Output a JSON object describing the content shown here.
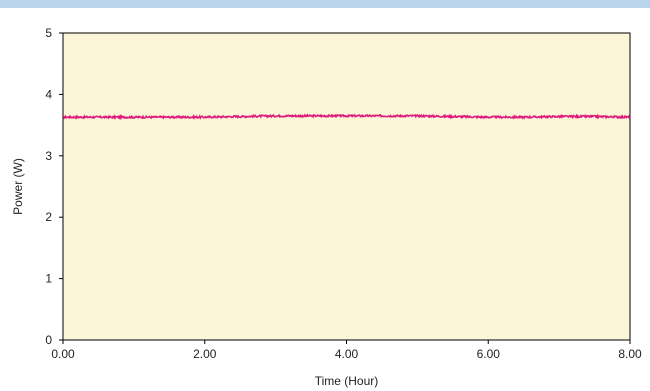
{
  "chart_data": {
    "type": "line",
    "title": "",
    "xlabel": "Time (Hour)",
    "ylabel": "Power (W)",
    "xlim": [
      0,
      8
    ],
    "ylim": [
      0,
      5
    ],
    "x_ticks": [
      0,
      2,
      4,
      6,
      8
    ],
    "x_tick_labels": [
      "0.00",
      "2.00",
      "4.00",
      "6.00",
      "8.00"
    ],
    "y_ticks": [
      0,
      1,
      2,
      3,
      4,
      5
    ],
    "y_tick_labels": [
      "0",
      "1",
      "2",
      "3",
      "4",
      "5"
    ],
    "grid": false,
    "legend": "none",
    "series": [
      {
        "color": "#e0197d",
        "x": [
          0,
          0.5,
          1,
          1.5,
          2,
          2.5,
          3,
          3.5,
          4,
          4.5,
          5,
          5.5,
          6,
          6.5,
          7,
          7.5,
          8
        ],
        "y": [
          3.63,
          3.63,
          3.63,
          3.63,
          3.63,
          3.64,
          3.65,
          3.65,
          3.65,
          3.65,
          3.65,
          3.64,
          3.63,
          3.63,
          3.64,
          3.64,
          3.63
        ]
      }
    ]
  },
  "colors": {
    "plot_background": "#fcf6d8",
    "top_band": "#b9d4ec",
    "axis": "#000000"
  }
}
